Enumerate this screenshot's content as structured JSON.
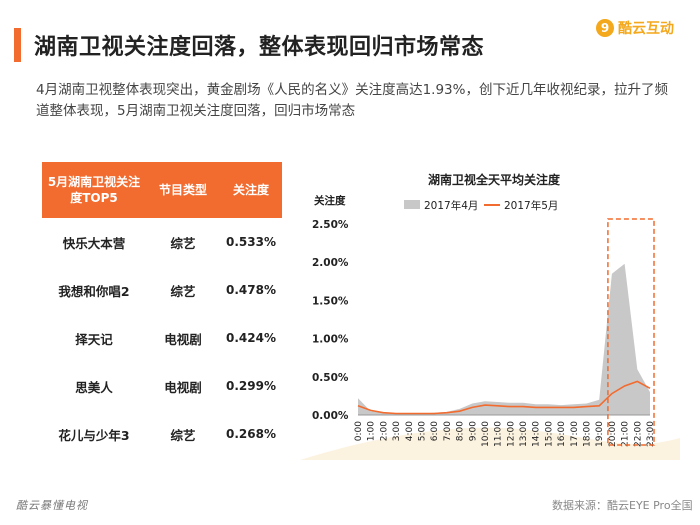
{
  "header": {
    "title": "湖南卫视关注度回落，整体表现回归市场常态",
    "logo_text": "酷云互动",
    "logo_glyph": "9",
    "accent_color": "#f26b2f",
    "logo_color": "#f4a81c"
  },
  "description": "4月湖南卫视整体表现突出，黄金剧场《人民的名义》关注度高达1.93%，创下近几年收视纪录，拉升了频道整体表现，5月湖南卫视关注度回落，回归市场常态",
  "table": {
    "headers": [
      "5月湖南卫视关注度TOP5",
      "节目类型",
      "关注度"
    ],
    "rows": [
      [
        "快乐大本营",
        "综艺",
        "0.533%"
      ],
      [
        "我想和你唱2",
        "综艺",
        "0.478%"
      ],
      [
        "择天记",
        "电视剧",
        "0.424%"
      ],
      [
        "思美人",
        "电视剧",
        "0.299%"
      ],
      [
        "花儿与少年3",
        "综艺",
        "0.268%"
      ]
    ]
  },
  "chart_data": {
    "type": "area",
    "title": "湖南卫视全天平均关注度",
    "ylabel": "关注度",
    "ylim": [
      0,
      2.5
    ],
    "y_ticks": [
      "2.50%",
      "2.00%",
      "1.50%",
      "1.00%",
      "0.50%",
      "0.00%"
    ],
    "x": [
      "0:00",
      "1:00",
      "2:00",
      "3:00",
      "4:00",
      "5:00",
      "6:00",
      "7:00",
      "8:00",
      "9:00",
      "10:00",
      "11:00",
      "12:00",
      "13:00",
      "14:00",
      "15:00",
      "16:00",
      "17:00",
      "18:00",
      "19:00",
      "20:00",
      "21:00",
      "22:00",
      "23:00"
    ],
    "legend_position": "top",
    "grid": false,
    "series": [
      {
        "name": "2017年4月",
        "style": "area",
        "color": "#c8c8c8",
        "values": [
          0.22,
          0.05,
          0.03,
          0.02,
          0.02,
          0.02,
          0.03,
          0.04,
          0.08,
          0.15,
          0.18,
          0.17,
          0.16,
          0.16,
          0.14,
          0.14,
          0.13,
          0.14,
          0.15,
          0.2,
          1.85,
          1.98,
          0.6,
          0.3
        ]
      },
      {
        "name": "2017年5月",
        "style": "line",
        "color": "#f26b2f",
        "values": [
          0.12,
          0.06,
          0.03,
          0.02,
          0.02,
          0.02,
          0.02,
          0.03,
          0.05,
          0.1,
          0.13,
          0.12,
          0.11,
          0.11,
          0.1,
          0.1,
          0.1,
          0.1,
          0.11,
          0.12,
          0.28,
          0.38,
          0.44,
          0.35
        ]
      }
    ],
    "highlight": {
      "from": "20:00",
      "to": "23:00",
      "color": "#f26b2f"
    },
    "background_wave_color": "#f5d9a6"
  },
  "footer": {
    "left": "酷云暴懂电视",
    "right": "数据来源：酷云EYE Pro全国"
  }
}
